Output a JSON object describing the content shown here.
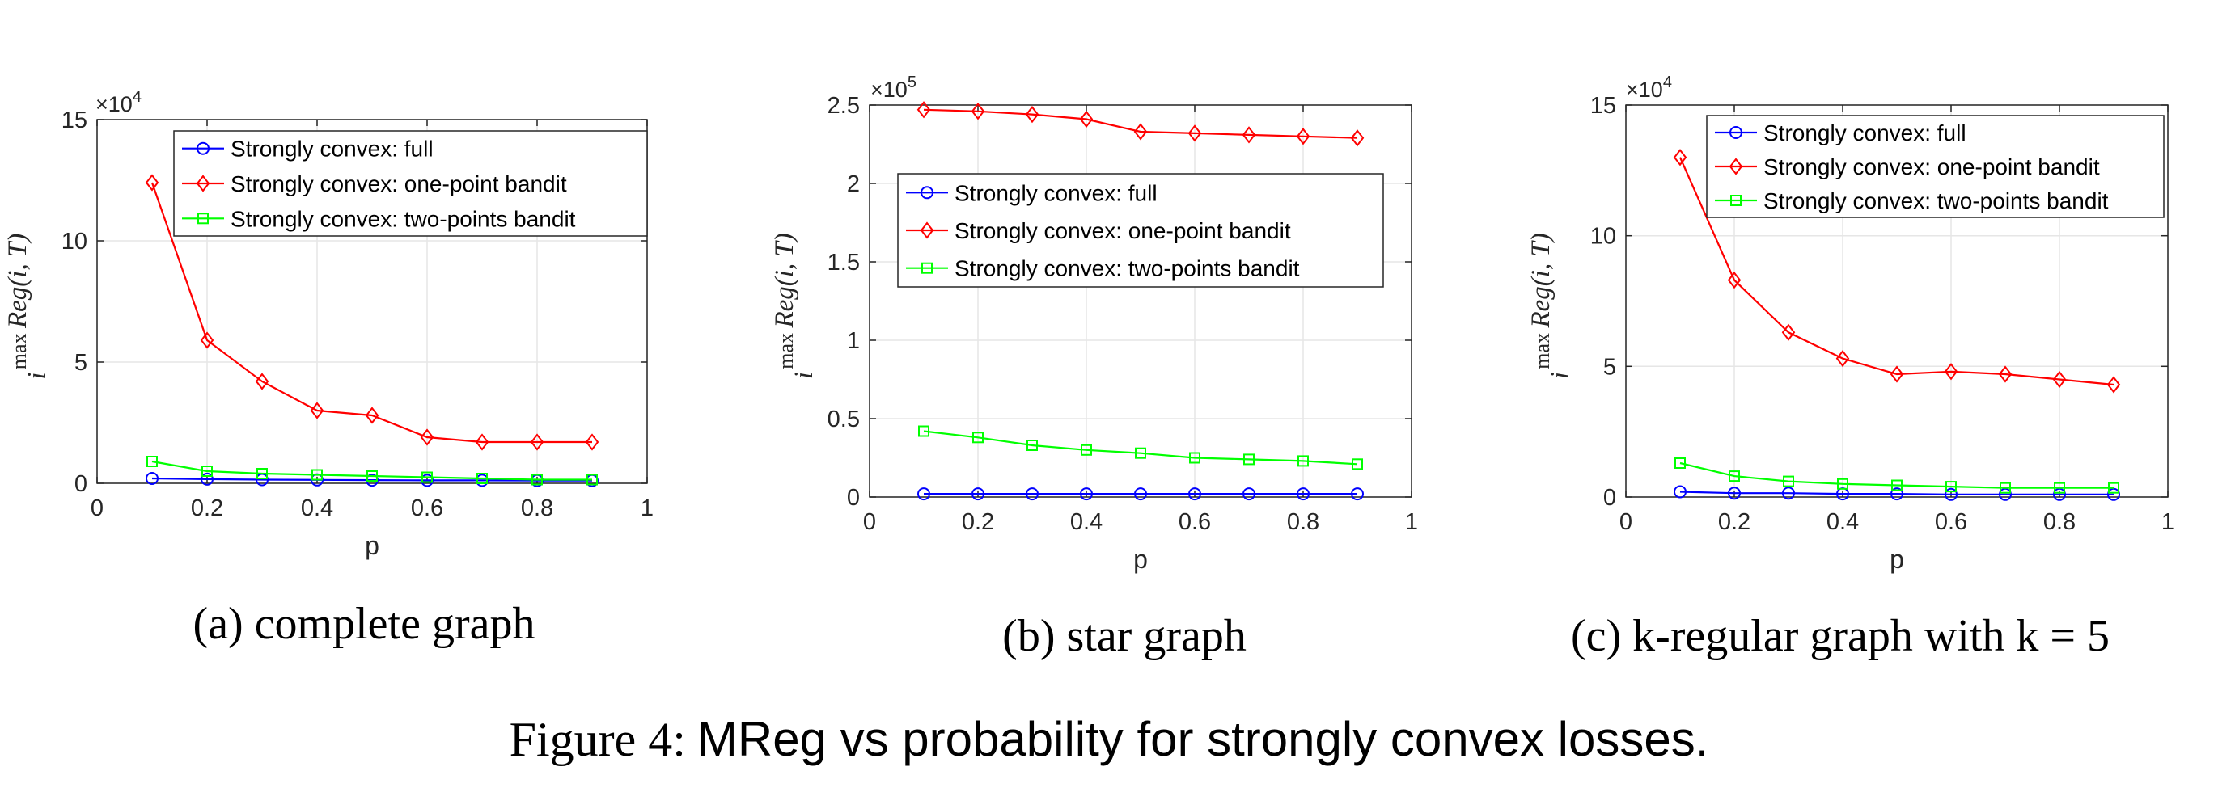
{
  "figure": {
    "label": "Figure 4:",
    "caption": "MReg vs probability for strongly convex losses."
  },
  "colors": {
    "full": "#0000ff",
    "one_point": "#ff0000",
    "two_points": "#00ff00",
    "axis": "#262626",
    "grid": "#e6e6e6"
  },
  "icons": {
    "full": "circle-marker-icon",
    "one_point": "diamond-marker-icon",
    "two_points": "square-marker-icon"
  },
  "chart_data": [
    {
      "type": "line",
      "subcaption": "(a) complete graph",
      "xlabel": "p",
      "ylabel": "max Reg(i,T)",
      "ylabel_max": "max",
      "ylabel_sub": "i",
      "ylabel_expr": "Reg(i, T)",
      "exponent_label": "×10",
      "exponent_power": "4",
      "x": [
        0.1,
        0.2,
        0.3,
        0.4,
        0.5,
        0.6,
        0.7,
        0.8,
        0.9
      ],
      "xlim": [
        0,
        1
      ],
      "ylim": [
        0,
        15
      ],
      "xticks": [
        0,
        0.2,
        0.4,
        0.6,
        0.8,
        1
      ],
      "xtick_labels": [
        "0",
        "0.2",
        "0.4",
        "0.6",
        "0.8",
        "1"
      ],
      "yticks": [
        0,
        5,
        10,
        15
      ],
      "ytick_labels": [
        "0",
        "5",
        "10",
        "15"
      ],
      "legend_position": "top-right",
      "series": [
        {
          "name": "Strongly convex: full",
          "key": "full",
          "marker": "circle",
          "values": [
            0.2,
            0.17,
            0.15,
            0.14,
            0.13,
            0.12,
            0.12,
            0.11,
            0.11
          ]
        },
        {
          "name": "Strongly convex: one-point bandit",
          "key": "one_point",
          "marker": "diamond",
          "values": [
            12.4,
            5.9,
            4.2,
            3.0,
            2.8,
            1.9,
            1.7,
            1.7,
            1.7
          ]
        },
        {
          "name": "Strongly convex: two-points bandit",
          "key": "two_points",
          "marker": "square",
          "values": [
            0.9,
            0.5,
            0.4,
            0.35,
            0.3,
            0.25,
            0.2,
            0.15,
            0.15
          ]
        }
      ]
    },
    {
      "type": "line",
      "subcaption": "(b) star graph",
      "xlabel": "p",
      "ylabel": "max Reg(i,T)",
      "ylabel_max": "max",
      "ylabel_sub": "i",
      "ylabel_expr": "Reg(i, T)",
      "exponent_label": "×10",
      "exponent_power": "5",
      "x": [
        0.1,
        0.2,
        0.3,
        0.4,
        0.5,
        0.6,
        0.7,
        0.8,
        0.9
      ],
      "xlim": [
        0,
        1
      ],
      "ylim": [
        0,
        2.5
      ],
      "xticks": [
        0,
        0.2,
        0.4,
        0.6,
        0.8,
        1
      ],
      "xtick_labels": [
        "0",
        "0.2",
        "0.4",
        "0.6",
        "0.8",
        "1"
      ],
      "yticks": [
        0,
        0.5,
        1,
        1.5,
        2,
        2.5
      ],
      "ytick_labels": [
        "0",
        "0.5",
        "1",
        "1.5",
        "2",
        "2.5"
      ],
      "legend_position": "upper-right-middle",
      "series": [
        {
          "name": "Strongly convex: full",
          "key": "full",
          "marker": "circle",
          "values": [
            0.02,
            0.02,
            0.02,
            0.02,
            0.02,
            0.02,
            0.02,
            0.02,
            0.02
          ]
        },
        {
          "name": "Strongly convex: one-point bandit",
          "key": "one_point",
          "marker": "diamond",
          "values": [
            2.47,
            2.46,
            2.44,
            2.41,
            2.33,
            2.32,
            2.31,
            2.3,
            2.29
          ]
        },
        {
          "name": "Strongly convex: two-points bandit",
          "key": "two_points",
          "marker": "square",
          "values": [
            0.42,
            0.38,
            0.33,
            0.3,
            0.28,
            0.25,
            0.24,
            0.23,
            0.21
          ]
        }
      ]
    },
    {
      "type": "line",
      "subcaption": "(c) k-regular graph with k = 5",
      "xlabel": "p",
      "ylabel": "max Reg(i,T)",
      "ylabel_max": "max",
      "ylabel_sub": "i",
      "ylabel_expr": "Reg(i, T)",
      "exponent_label": "×10",
      "exponent_power": "4",
      "x": [
        0.1,
        0.2,
        0.3,
        0.4,
        0.5,
        0.6,
        0.7,
        0.8,
        0.9
      ],
      "xlim": [
        0,
        1
      ],
      "ylim": [
        0,
        15
      ],
      "xticks": [
        0,
        0.2,
        0.4,
        0.6,
        0.8,
        1
      ],
      "xtick_labels": [
        "0",
        "0.2",
        "0.4",
        "0.6",
        "0.8",
        "1"
      ],
      "yticks": [
        0,
        5,
        10,
        15
      ],
      "ytick_labels": [
        "0",
        "5",
        "10",
        "15"
      ],
      "legend_position": "top-right",
      "series": [
        {
          "name": "Strongly convex: full",
          "key": "full",
          "marker": "circle",
          "values": [
            0.2,
            0.15,
            0.15,
            0.12,
            0.12,
            0.1,
            0.1,
            0.1,
            0.1
          ]
        },
        {
          "name": "Strongly convex: one-point bandit",
          "key": "one_point",
          "marker": "diamond",
          "values": [
            13.0,
            8.3,
            6.3,
            5.3,
            4.7,
            4.8,
            4.7,
            4.5,
            4.3
          ]
        },
        {
          "name": "Strongly convex: two-points bandit",
          "key": "two_points",
          "marker": "square",
          "values": [
            1.3,
            0.8,
            0.6,
            0.5,
            0.45,
            0.4,
            0.35,
            0.35,
            0.35
          ]
        }
      ]
    }
  ]
}
